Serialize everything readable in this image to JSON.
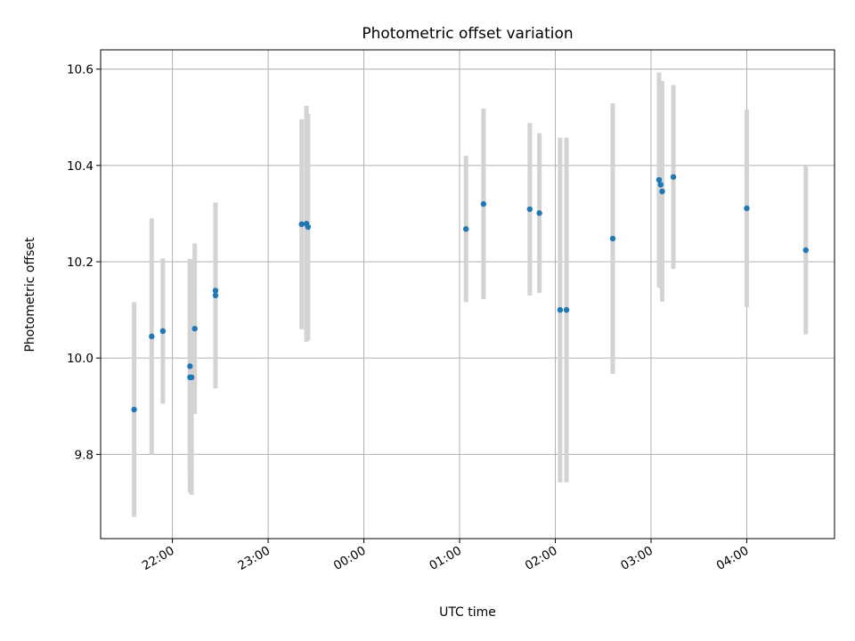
{
  "chart_data": {
    "type": "scatter",
    "title": "Photometric offset variation",
    "xlabel": "UTC time",
    "ylabel": "Photometric offset",
    "grid": true,
    "x_unit": "UTC time of day (hours past midnight of first night)",
    "xlim": [
      "21:15",
      "04:55"
    ],
    "ylim": [
      9.625,
      10.64
    ],
    "x_ticks": [
      "22:00",
      "23:00",
      "00:00",
      "01:00",
      "02:00",
      "03:00",
      "04:00"
    ],
    "y_ticks": [
      "9.8",
      "10.0",
      "10.2",
      "10.4",
      "10.6"
    ],
    "colors": {
      "point": "#1f77b4",
      "errorbar": "#d3d3d3",
      "grid": "#b0b0b0"
    },
    "points": [
      {
        "x": "21:36",
        "y": 9.893,
        "err": 0.223
      },
      {
        "x": "21:47",
        "y": 10.045,
        "err": 0.245
      },
      {
        "x": "21:54",
        "y": 10.056,
        "err": 0.151
      },
      {
        "x": "22:11",
        "y": 9.983,
        "err": 0.223
      },
      {
        "x": "22:11",
        "y": 9.96,
        "err": 0.239
      },
      {
        "x": "22:12",
        "y": 9.96,
        "err": 0.244
      },
      {
        "x": "22:14",
        "y": 10.061,
        "err": 0.177
      },
      {
        "x": "22:27",
        "y": 10.13,
        "err": 0.193
      },
      {
        "x": "22:27",
        "y": 10.14,
        "err": 0.183
      },
      {
        "x": "23:21",
        "y": 10.278,
        "err": 0.218
      },
      {
        "x": "23:24",
        "y": 10.279,
        "err": 0.245
      },
      {
        "x": "23:25",
        "y": 10.272,
        "err": 0.235
      },
      {
        "x": "01:04",
        "y": 10.268,
        "err": 0.152
      },
      {
        "x": "01:15",
        "y": 10.32,
        "err": 0.198
      },
      {
        "x": "01:44",
        "y": 10.309,
        "err": 0.179
      },
      {
        "x": "01:50",
        "y": 10.301,
        "err": 0.166
      },
      {
        "x": "02:03",
        "y": 10.1,
        "err": 0.358
      },
      {
        "x": "02:07",
        "y": 10.1,
        "err": 0.358
      },
      {
        "x": "02:36",
        "y": 10.248,
        "err": 0.281
      },
      {
        "x": "03:05",
        "y": 10.37,
        "err": 0.223
      },
      {
        "x": "03:06",
        "y": 10.36,
        "err": 0.215
      },
      {
        "x": "03:07",
        "y": 10.346,
        "err": 0.229
      },
      {
        "x": "03:14",
        "y": 10.376,
        "err": 0.191
      },
      {
        "x": "04:00",
        "y": 10.311,
        "err": 0.205
      },
      {
        "x": "04:37",
        "y": 10.224,
        "err": 0.175
      }
    ]
  }
}
